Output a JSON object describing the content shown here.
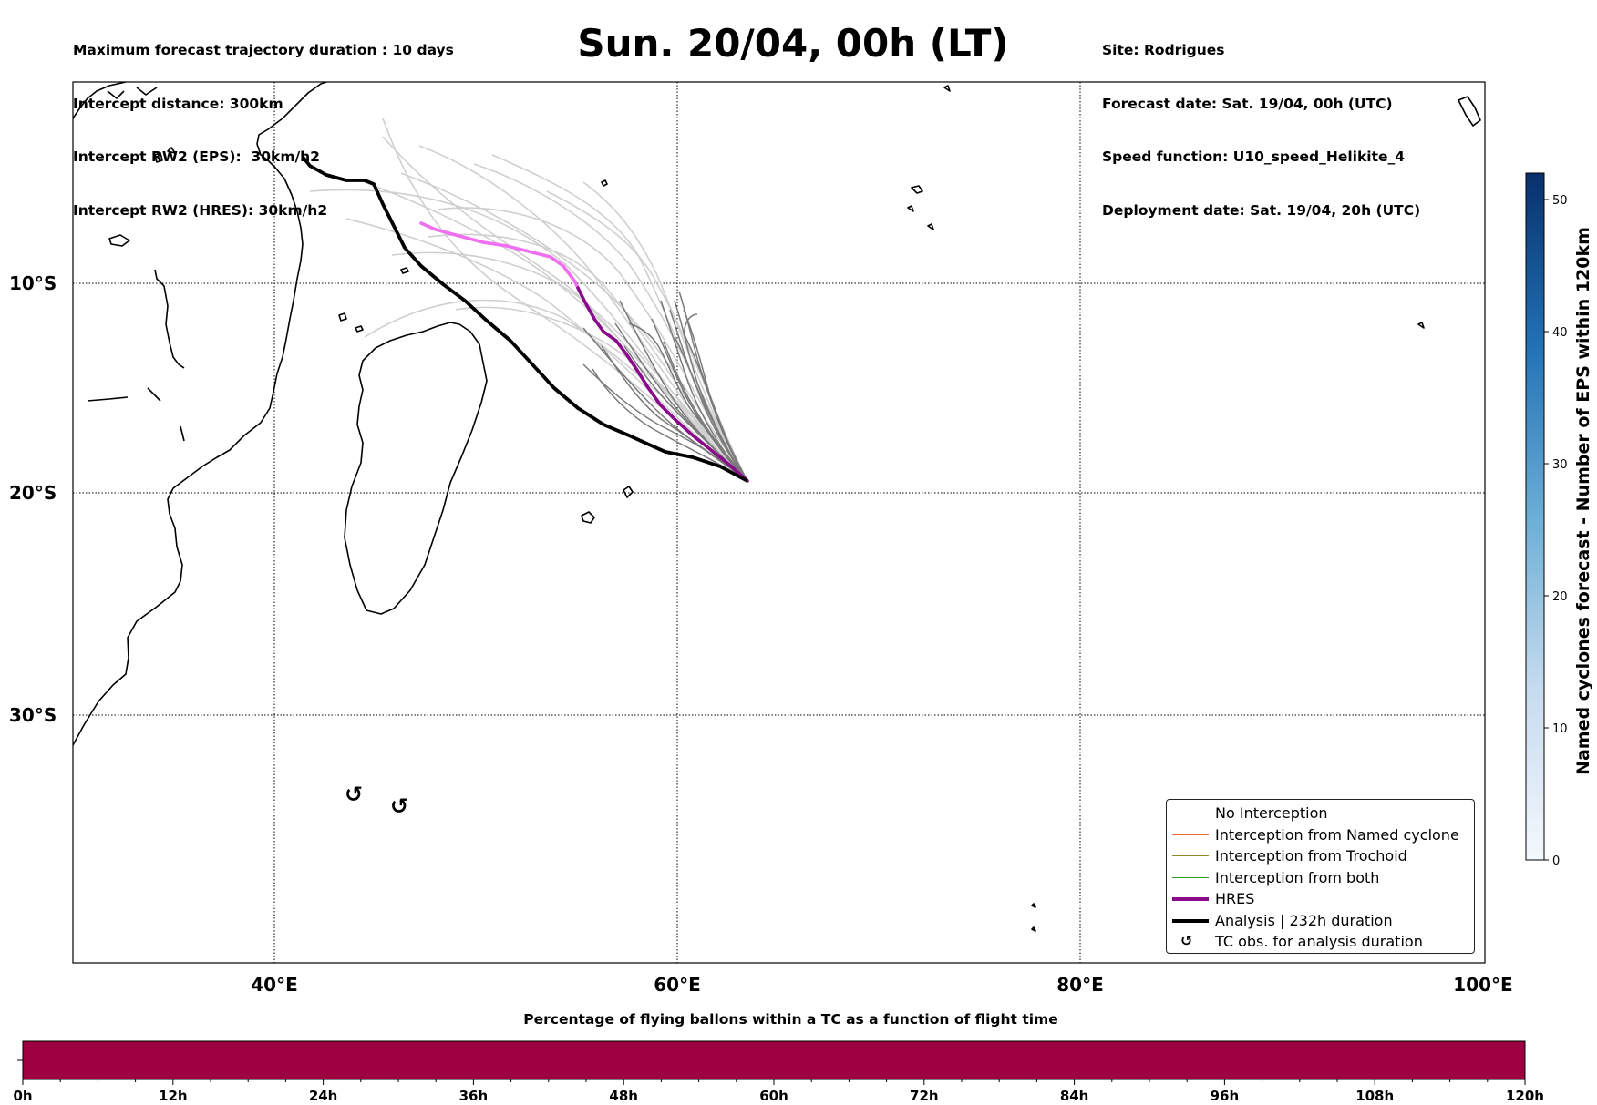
{
  "header": {
    "left_lines": [
      "Maximum forecast trajectory duration : 10 days",
      "Intercept distance: 300km",
      "Intercept RW2 (EPS):  30km/h2",
      "Intercept RW2 (HRES): 30km/h2"
    ],
    "title": "Sun. 20/04, 00h (LT)",
    "right_lines": [
      "Site: Rodrigues",
      "Forecast date: Sat. 19/04, 00h (UTC)",
      "Speed function: U10_speed_Helikite_4",
      "Deployment date: Sat. 19/04, 20h (UTC)"
    ]
  },
  "map": {
    "lat_labels": [
      "10°S",
      "20°S",
      "30°S"
    ],
    "lon_labels": [
      "40°E",
      "60°E",
      "80°E",
      "100°E"
    ],
    "colors": {
      "no_interception": "#7a7a7a",
      "interception_named_cyclone": "#f26a3d",
      "interception_trochoid": "#8f8f2a",
      "interception_both": "#2e9b2e",
      "hres": "#8b0a8b",
      "hres_early": "#f06ef0",
      "analysis": "#000000",
      "ensemble_light": "#cfcfcf"
    }
  },
  "legend": {
    "items": [
      {
        "label": "No Interception"
      },
      {
        "label": "Interception from Named cyclone"
      },
      {
        "label": "Interception from Trochoid"
      },
      {
        "label": "Interception from both"
      },
      {
        "label": "HRES"
      },
      {
        "label": "Analysis | 232h duration"
      },
      {
        "label": "TC obs. for analysis duration",
        "symbol": "↺"
      }
    ]
  },
  "colorbar": {
    "label": "Named cyclones forecast - Number of EPS within 120km",
    "ticks": [
      "0",
      "10",
      "20",
      "30",
      "40",
      "50"
    ]
  },
  "bottom_bar": {
    "title": "Percentage of flying ballons within a TC as a function of flight time",
    "ticks": [
      "0h",
      "12h",
      "24h",
      "36h",
      "48h",
      "60h",
      "72h",
      "84h",
      "96h",
      "108h",
      "120h"
    ],
    "color": "#9c0040"
  }
}
